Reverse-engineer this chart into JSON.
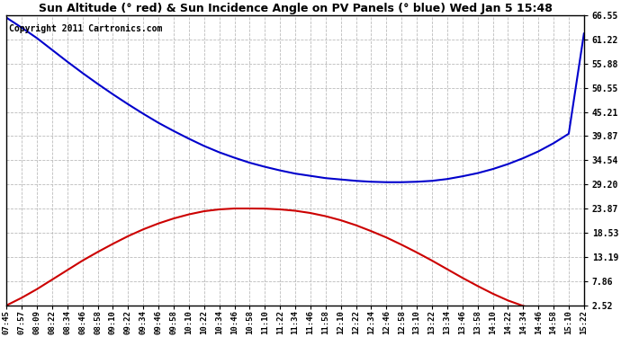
{
  "title": "Sun Altitude (° red) & Sun Incidence Angle on PV Panels (° blue) Wed Jan 5 15:48",
  "copyright_text": "Copyright 2011 Cartronics.com",
  "x_labels": [
    "07:45",
    "07:57",
    "08:09",
    "08:22",
    "08:34",
    "08:46",
    "08:58",
    "09:10",
    "09:22",
    "09:34",
    "09:46",
    "09:58",
    "10:10",
    "10:22",
    "10:34",
    "10:46",
    "10:58",
    "11:10",
    "11:22",
    "11:34",
    "11:46",
    "11:58",
    "12:10",
    "12:22",
    "12:34",
    "12:46",
    "12:58",
    "13:10",
    "13:22",
    "13:34",
    "13:46",
    "13:58",
    "14:10",
    "14:22",
    "14:34",
    "14:46",
    "14:58",
    "15:10",
    "15:22"
  ],
  "y_ticks": [
    2.52,
    7.86,
    13.19,
    18.53,
    23.87,
    29.2,
    34.54,
    39.87,
    45.21,
    50.55,
    55.88,
    61.22,
    66.55
  ],
  "ylim": [
    2.52,
    66.55
  ],
  "red_data": [
    2.52,
    4.2,
    6.1,
    8.2,
    10.3,
    12.4,
    14.3,
    16.1,
    17.8,
    19.3,
    20.6,
    21.7,
    22.6,
    23.3,
    23.7,
    23.9,
    23.9,
    23.87,
    23.7,
    23.4,
    22.9,
    22.2,
    21.3,
    20.2,
    18.9,
    17.5,
    15.9,
    14.2,
    12.4,
    10.5,
    8.6,
    6.8,
    5.1,
    3.6,
    2.4,
    1.5,
    0.9,
    0.5,
    0.2
  ],
  "blue_data": [
    66.0,
    63.8,
    61.5,
    58.9,
    56.3,
    53.8,
    51.4,
    49.1,
    46.9,
    44.8,
    42.8,
    41.0,
    39.3,
    37.7,
    36.3,
    35.1,
    34.0,
    33.1,
    32.3,
    31.6,
    31.1,
    30.6,
    30.3,
    30.0,
    29.8,
    29.7,
    29.7,
    29.8,
    30.0,
    30.4,
    31.0,
    31.7,
    32.6,
    33.7,
    35.0,
    36.5,
    38.3,
    40.4,
    62.5
  ],
  "line_color_red": "#cc0000",
  "line_color_blue": "#0000cc",
  "grid_color": "#bbbbbb",
  "grid_style": "--",
  "bg_color": "#ffffff",
  "plot_bg_color": "#ffffff",
  "title_fontsize": 9,
  "tick_fontsize": 7,
  "copyright_fontsize": 7,
  "linewidth": 1.5,
  "figwidth": 6.9,
  "figheight": 3.75,
  "dpi": 100
}
